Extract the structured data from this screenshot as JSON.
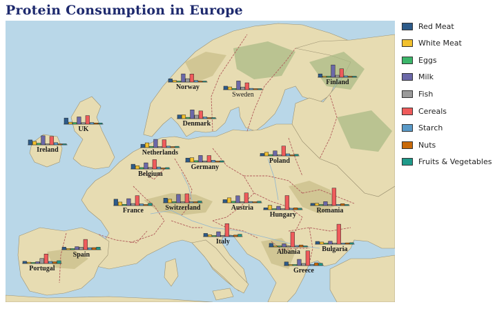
{
  "title": "Protein Consumption in Europe",
  "categories": [
    "Red Meat",
    "White Meat",
    "Eggs",
    "Milk",
    "Fish",
    "Cereals",
    "Starch",
    "Nuts",
    "Fruits & Vegetables"
  ],
  "colors": [
    "#2d5b8a",
    "#f2c12e",
    "#3cb66a",
    "#6b68a8",
    "#9a9a9a",
    "#ef5b5b",
    "#5a9ac8",
    "#c8690a",
    "#1f9a8a"
  ],
  "map_colors": {
    "sea": "#b9d7e8",
    "land": "#e7dcb2",
    "highland": "#c9bf8a",
    "forest": "#a7b883",
    "border": "#b05a5a",
    "river": "#8fb6d0"
  },
  "chart_data": {
    "type": "bar",
    "categories": [
      "Red Meat",
      "White Meat",
      "Eggs",
      "Milk",
      "Fish",
      "Cereals",
      "Starch",
      "Nuts",
      "Fruits & Vegetables"
    ],
    "series": [
      {
        "name": "Norway",
        "values": [
          9.4,
          4.7,
          2.7,
          23.3,
          9.7,
          23.0,
          4.6,
          1.6,
          2.7
        ]
      },
      {
        "name": "Sweden",
        "values": [
          9.9,
          7.8,
          3.5,
          24.7,
          7.5,
          19.5,
          3.7,
          1.4,
          2.0
        ]
      },
      {
        "name": "Finland",
        "values": [
          9.5,
          3.0,
          2.8,
          35.0,
          5.8,
          24.0,
          4.0,
          0.8,
          1.9
        ]
      },
      {
        "name": "Denmark",
        "values": [
          10.6,
          10.8,
          3.7,
          25.0,
          9.9,
          21.9,
          4.8,
          0.7,
          2.4
        ]
      },
      {
        "name": "UK",
        "values": [
          17.4,
          5.7,
          4.7,
          20.6,
          4.3,
          24.3,
          4.7,
          3.4,
          3.3
        ]
      },
      {
        "name": "Ireland",
        "values": [
          13.9,
          10.0,
          4.7,
          25.8,
          2.2,
          24.0,
          6.2,
          1.6,
          2.9
        ]
      },
      {
        "name": "Netherlands",
        "values": [
          9.5,
          13.6,
          3.6,
          23.4,
          2.5,
          22.4,
          4.2,
          1.8,
          3.7
        ]
      },
      {
        "name": "Belgium",
        "values": [
          13.5,
          9.3,
          4.1,
          17.5,
          4.5,
          26.6,
          5.7,
          2.1,
          4.0
        ]
      },
      {
        "name": "Germany",
        "values": [
          11.4,
          12.5,
          4.1,
          18.8,
          3.4,
          18.6,
          5.2,
          1.5,
          3.8
        ]
      },
      {
        "name": "Poland",
        "values": [
          6.9,
          10.2,
          3.7,
          14.2,
          0.5,
          28.0,
          5.9,
          2.0,
          4.4
        ]
      },
      {
        "name": "France",
        "values": [
          18.0,
          9.9,
          3.3,
          19.5,
          5.7,
          28.1,
          4.8,
          2.4,
          6.5
        ]
      },
      {
        "name": "Switzerland",
        "values": [
          13.1,
          10.1,
          3.1,
          23.8,
          2.3,
          25.6,
          2.8,
          2.4,
          4.9
        ]
      },
      {
        "name": "Austria",
        "values": [
          8.9,
          14.0,
          4.3,
          19.9,
          2.1,
          28.0,
          3.6,
          1.3,
          4.3
        ]
      },
      {
        "name": "Hungary",
        "values": [
          5.3,
          12.4,
          2.9,
          9.7,
          0.3,
          40.1,
          4.0,
          5.4,
          4.2
        ]
      },
      {
        "name": "Romania",
        "values": [
          6.2,
          6.3,
          1.5,
          11.1,
          1.0,
          49.6,
          3.1,
          5.3,
          2.8
        ]
      },
      {
        "name": "Italy",
        "values": [
          9.0,
          5.1,
          2.9,
          13.7,
          3.4,
          36.8,
          2.1,
          4.3,
          6.7
        ]
      },
      {
        "name": "Portugal",
        "values": [
          6.2,
          3.7,
          1.1,
          4.9,
          14.2,
          27.0,
          5.9,
          4.7,
          7.9
        ]
      },
      {
        "name": "Spain",
        "values": [
          7.1,
          3.4,
          3.1,
          8.6,
          7.0,
          29.2,
          5.7,
          5.9,
          7.2
        ]
      },
      {
        "name": "Albania",
        "values": [
          10.1,
          1.4,
          0.5,
          8.9,
          0.2,
          42.3,
          0.6,
          5.5,
          1.7
        ]
      },
      {
        "name": "Bulgaria",
        "values": [
          7.8,
          6.0,
          1.6,
          8.3,
          1.2,
          56.7,
          1.1,
          3.7,
          4.2
        ]
      },
      {
        "name": "Greece",
        "values": [
          10.2,
          3.0,
          2.8,
          17.6,
          5.9,
          41.7,
          2.2,
          7.8,
          6.5
        ]
      }
    ],
    "xlabel": "",
    "ylabel": "",
    "legend": "right"
  }
}
